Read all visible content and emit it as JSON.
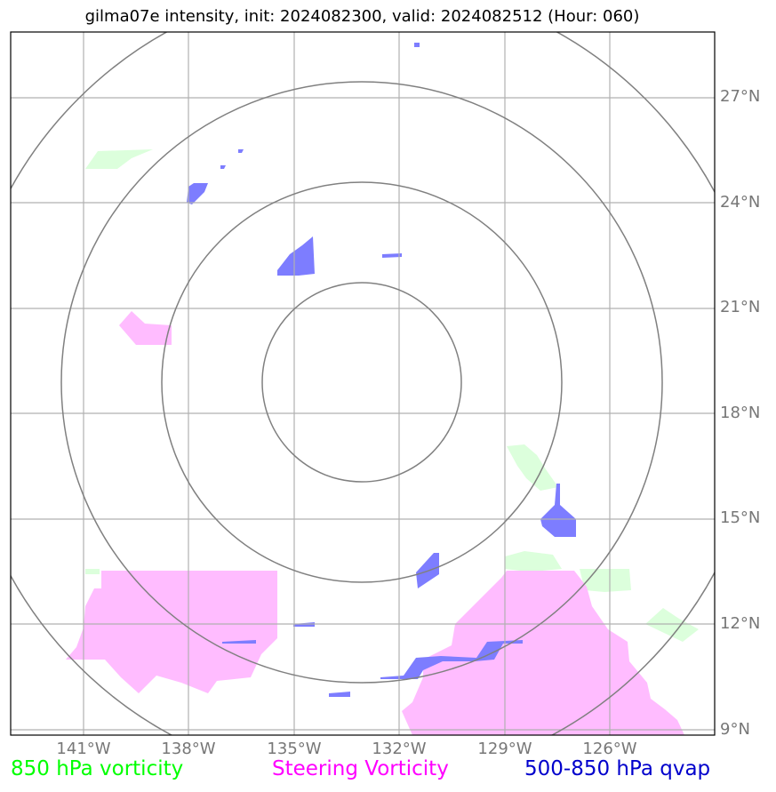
{
  "title": "gilma07e intensity, init: 2024082300, valid: 2024082512 (Hour: 060)",
  "lat_labels": [
    "27°N",
    "24°N",
    "21°N",
    "18°N",
    "15°N",
    "12°N",
    "9°N"
  ],
  "lon_labels": [
    "141°W",
    "138°W",
    "135°W",
    "132°W",
    "129°W",
    "126°W"
  ],
  "legend": {
    "vorticity_850": "850 hPa vorticity",
    "steering": "Steering Vorticity",
    "qvap": "500-850 hPa qvap"
  },
  "colors": {
    "vorticity_850": "#00ff00",
    "steering": "#ff00ff",
    "qvap": "#0000cc",
    "green_fill": "#dcffdc",
    "magenta_fill": "#ffbcff",
    "blue_fill": "#7d7dff",
    "grid": "#b0b0b0",
    "rings": "#808080"
  }
}
